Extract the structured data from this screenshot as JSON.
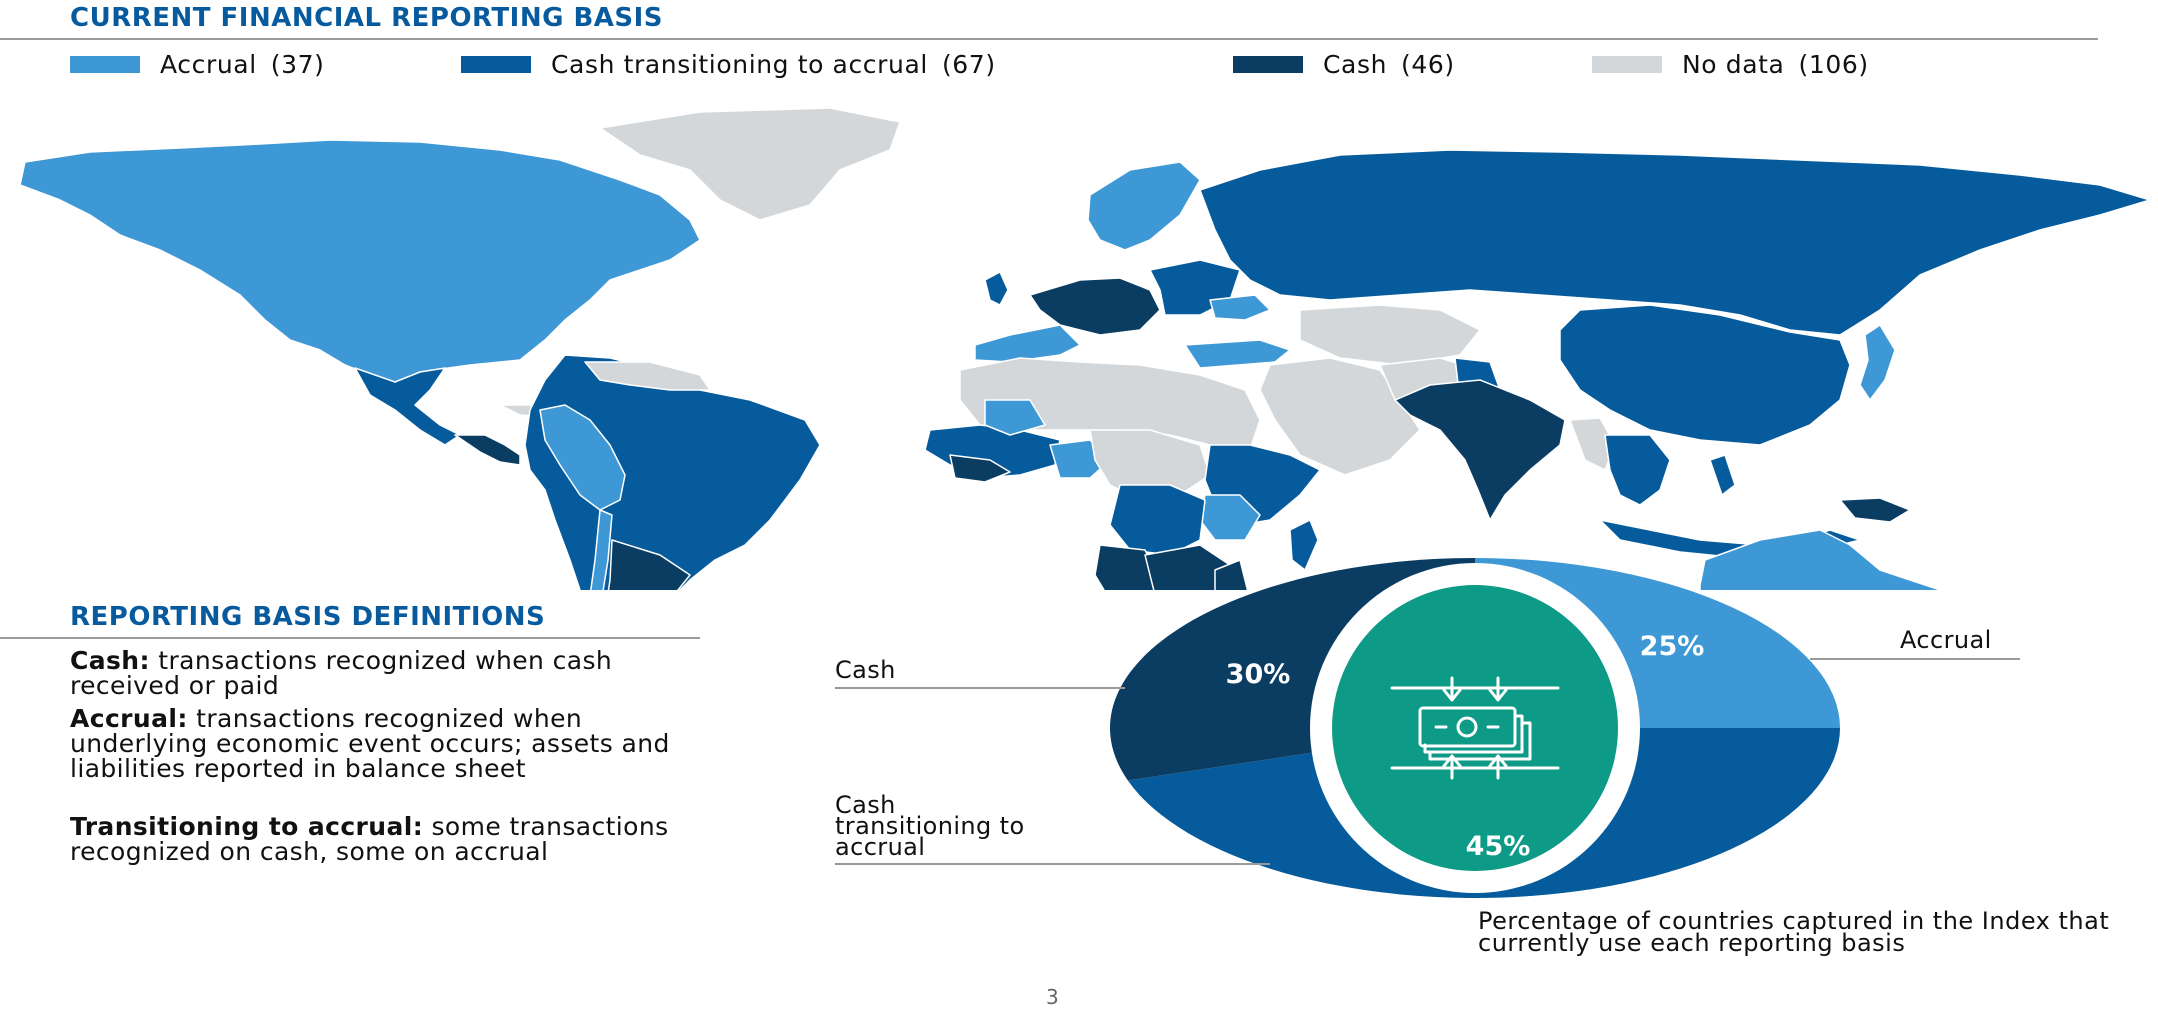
{
  "header": {
    "title": "CURRENT FINANCIAL REPORTING BASIS"
  },
  "legend": [
    {
      "label": "Accrual",
      "count": "(37)",
      "color": "#3e98d5"
    },
    {
      "label": "Cash transitioning to accrual",
      "count": "(67)",
      "color": "#065b9c"
    },
    {
      "label": "Cash",
      "count": "(46)",
      "color": "#0b3d62"
    },
    {
      "label": "No data",
      "count": "(106)",
      "color": "#d4d7da"
    }
  ],
  "map": {
    "icon": "world-map-icon",
    "colors": {
      "accrual": "#3e98d5",
      "transitioning": "#065b9c",
      "cash": "#0b3d62",
      "nodata": "#d4d7da"
    }
  },
  "definitions": {
    "title": "REPORTING BASIS DEFINITIONS",
    "items": [
      {
        "term": "Cash:",
        "text": " transactions recognized when cash received or paid"
      },
      {
        "term": "Accrual:",
        "text": " transactions recognized when underlying economic event occurs; assets and liabilities reported in balance sheet"
      },
      {
        "term": "Transitioning to accrual:",
        "text": " some transactions recognized on cash, some on accrual"
      }
    ]
  },
  "chart_data": {
    "type": "pie",
    "title": "",
    "labels": [
      "Accrual",
      "Cash transitioning to accrual",
      "Cash"
    ],
    "values": [
      25,
      45,
      30
    ],
    "data_labels": [
      "25%",
      "45%",
      "30%"
    ],
    "callout_labels": [
      "Accrual",
      "Cash transitioning to accrual",
      "Cash"
    ],
    "colors": [
      "#3e98d5",
      "#065b9c",
      "#0b3d62"
    ],
    "center_icon": "money-transfer-icon",
    "center_color": "#0d9a86",
    "caption": "Percentage of countries captured in the Index that currently use each reporting basis"
  },
  "page": {
    "number": "3"
  }
}
